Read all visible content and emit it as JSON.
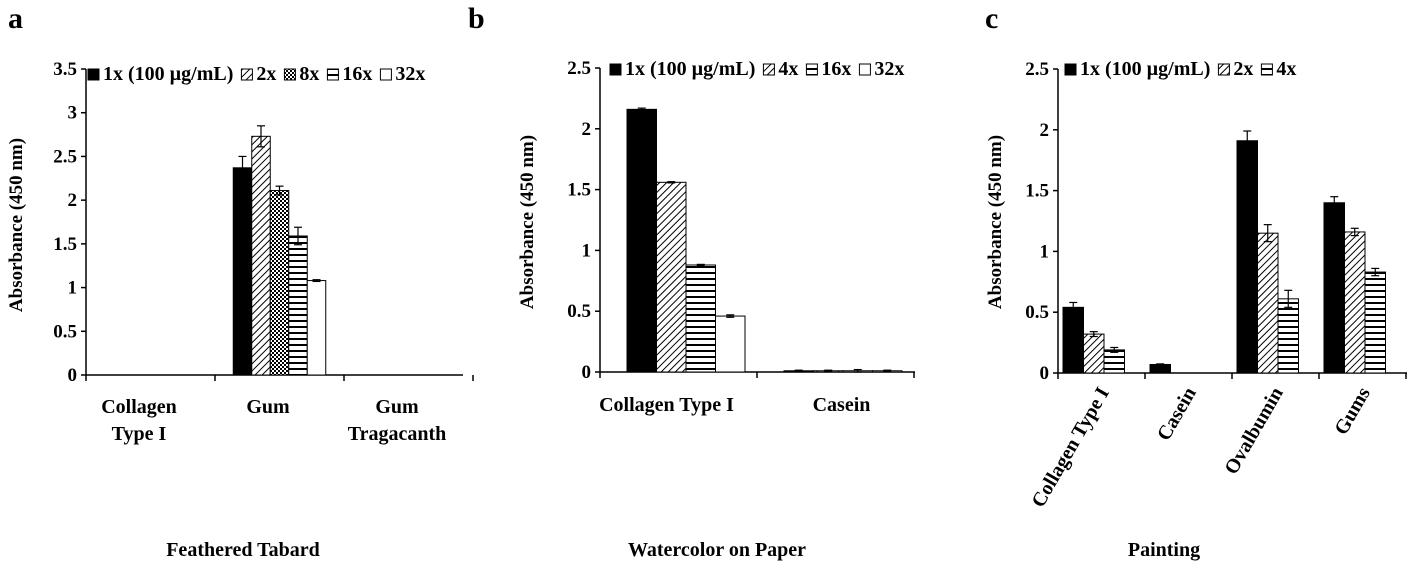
{
  "chart_data": [
    {
      "panel_label": "a",
      "type": "bar",
      "title": "Feathered Tabard",
      "ylabel": "Absorbance (450 nm)",
      "ylim": [
        0,
        3.5
      ],
      "yticks": [
        "0",
        "0.5",
        "1",
        "1.5",
        "2",
        "2.5",
        "3",
        "3.5"
      ],
      "categories": [
        "Collagen Type I",
        "Gum",
        "Gum Tragacanth"
      ],
      "legend_placement": "top",
      "series": [
        {
          "name": "1x (100 µg/mL)",
          "pattern": "solid",
          "values": [
            0,
            2.37,
            0
          ],
          "errors": [
            0,
            0.13,
            0
          ]
        },
        {
          "name": "2x",
          "pattern": "diagonal",
          "values": [
            0,
            2.73,
            0
          ],
          "errors": [
            0,
            0.12,
            0
          ]
        },
        {
          "name": "8x",
          "pattern": "checker",
          "values": [
            0,
            2.11,
            0
          ],
          "errors": [
            0,
            0.05,
            0
          ]
        },
        {
          "name": "16x",
          "pattern": "horizontal",
          "values": [
            0,
            1.59,
            0
          ],
          "errors": [
            0,
            0.1,
            0
          ]
        },
        {
          "name": "32x",
          "pattern": "white",
          "values": [
            0,
            1.08,
            0
          ],
          "errors": [
            0,
            0.01,
            0
          ]
        }
      ]
    },
    {
      "panel_label": "b",
      "type": "bar",
      "title": "Watercolor on Paper",
      "ylabel": "Absorbance (450 nm)",
      "ylim": [
        0,
        2.5
      ],
      "yticks": [
        "0",
        "0.5",
        "1",
        "1.5",
        "2",
        "2.5"
      ],
      "categories": [
        "Collagen Type I",
        "Casein"
      ],
      "legend_placement": "top",
      "series": [
        {
          "name": "1x (100 µg/mL)",
          "pattern": "solid",
          "values": [
            2.16,
            0.01
          ],
          "errors": [
            0.01,
            0.005
          ]
        },
        {
          "name": "4x",
          "pattern": "diagonal",
          "values": [
            1.56,
            0.01
          ],
          "errors": [
            0.005,
            0.005
          ]
        },
        {
          "name": "16x",
          "pattern": "horizontal",
          "values": [
            0.88,
            0.01
          ],
          "errors": [
            0.005,
            0.01
          ]
        },
        {
          "name": "32x",
          "pattern": "white",
          "values": [
            0.46,
            0.01
          ],
          "errors": [
            0.01,
            0.005
          ]
        }
      ]
    },
    {
      "panel_label": "c",
      "type": "bar",
      "title": "Painting",
      "ylabel": "Absorbance (450 nm)",
      "ylim": [
        0,
        2.5
      ],
      "yticks": [
        "0",
        "0.5",
        "1",
        "1.5",
        "2",
        "2.5"
      ],
      "categories": [
        "Collagen Type I",
        "Casein",
        "Ovalbumin",
        "Gums"
      ],
      "legend_placement": "top",
      "series": [
        {
          "name": "1x (100 µg/mL)",
          "pattern": "solid",
          "values": [
            0.54,
            0.07,
            1.91,
            1.4
          ],
          "errors": [
            0.04,
            0.005,
            0.08,
            0.05
          ]
        },
        {
          "name": "2x",
          "pattern": "diagonal",
          "values": [
            0.32,
            0,
            1.15,
            1.16
          ],
          "errors": [
            0.02,
            0,
            0.07,
            0.03
          ]
        },
        {
          "name": "4x",
          "pattern": "horizontal",
          "values": [
            0.19,
            0,
            0.61,
            0.83
          ],
          "errors": [
            0.02,
            0,
            0.07,
            0.03
          ]
        }
      ]
    }
  ]
}
